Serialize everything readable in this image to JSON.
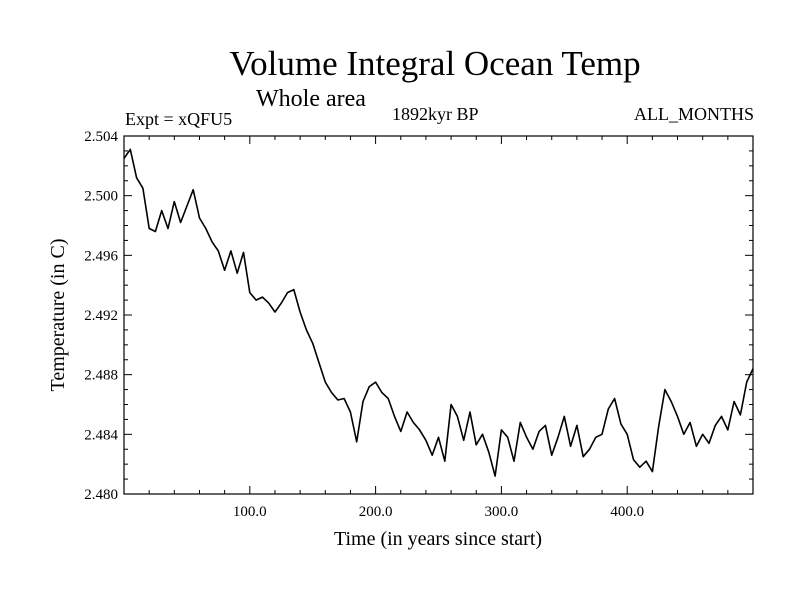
{
  "header": {
    "title": "Volume Integral Ocean Temp",
    "subtitle": "Whole area",
    "experiment": "Expt = xQFU5",
    "era": "1892kyr BP",
    "months": "ALL_MONTHS"
  },
  "chart_data": {
    "type": "line",
    "title": "Volume Integral Ocean Temp",
    "subtitle": "Whole area",
    "xlabel": "Time (in years since start)",
    "ylabel": "Temperature (in C)",
    "xlim": [
      0,
      500
    ],
    "ylim": [
      2.48,
      2.504
    ],
    "xticks": [
      100,
      200,
      300,
      400
    ],
    "xtick_labels": [
      "100.0",
      "200.0",
      "300.0",
      "400.0"
    ],
    "yticks": [
      2.48,
      2.484,
      2.488,
      2.492,
      2.496,
      2.5,
      2.504
    ],
    "ytick_labels": [
      "2.480",
      "2.484",
      "2.488",
      "2.492",
      "2.496",
      "2.500",
      "2.504"
    ],
    "grid": false,
    "series": [
      {
        "name": "Temperature",
        "x": [
          0,
          5,
          10,
          15,
          20,
          25,
          30,
          35,
          40,
          45,
          50,
          55,
          60,
          65,
          70,
          75,
          80,
          85,
          90,
          95,
          100,
          105,
          110,
          115,
          120,
          125,
          130,
          135,
          140,
          145,
          150,
          155,
          160,
          165,
          170,
          175,
          180,
          185,
          190,
          195,
          200,
          205,
          210,
          215,
          220,
          225,
          230,
          235,
          240,
          245,
          250,
          255,
          260,
          265,
          270,
          275,
          280,
          285,
          290,
          295,
          300,
          305,
          310,
          315,
          320,
          325,
          330,
          335,
          340,
          345,
          350,
          355,
          360,
          365,
          370,
          375,
          380,
          385,
          390,
          395,
          400,
          405,
          410,
          415,
          420,
          425,
          430,
          435,
          440,
          445,
          450,
          455,
          460,
          465,
          470,
          475,
          480,
          485,
          490,
          495,
          500
        ],
        "values": [
          2.5025,
          2.5031,
          2.5012,
          2.5005,
          2.4978,
          2.4976,
          2.499,
          2.4978,
          2.4996,
          2.4982,
          2.4993,
          2.5004,
          2.4985,
          2.4978,
          2.4969,
          2.4963,
          2.495,
          2.4963,
          2.4948,
          2.4962,
          2.4935,
          2.493,
          2.4932,
          2.4928,
          2.4922,
          2.4928,
          2.4935,
          2.4937,
          2.4922,
          2.491,
          2.4901,
          2.4888,
          2.4875,
          2.4868,
          2.4863,
          2.4864,
          2.4855,
          2.4835,
          2.4862,
          2.4872,
          2.4875,
          2.4868,
          2.4864,
          2.4852,
          2.4842,
          2.4855,
          2.4848,
          2.4843,
          2.4836,
          2.4826,
          2.4838,
          2.4822,
          2.486,
          2.4852,
          2.4836,
          2.4855,
          2.4833,
          2.484,
          2.4828,
          2.4812,
          2.4843,
          2.4838,
          2.4822,
          2.4848,
          2.4838,
          2.483,
          2.4842,
          2.4846,
          2.4826,
          2.4838,
          2.4852,
          2.4832,
          2.4846,
          2.4825,
          2.483,
          2.4838,
          2.484,
          2.4857,
          2.4864,
          2.4847,
          2.484,
          2.4823,
          2.4818,
          2.4822,
          2.4815,
          2.4845,
          2.487,
          2.4862,
          2.4852,
          2.484,
          2.4848,
          2.4832,
          2.484,
          2.4834,
          2.4846,
          2.4852,
          2.4843,
          2.4862,
          2.4853,
          2.4875,
          2.4884
        ]
      }
    ]
  }
}
